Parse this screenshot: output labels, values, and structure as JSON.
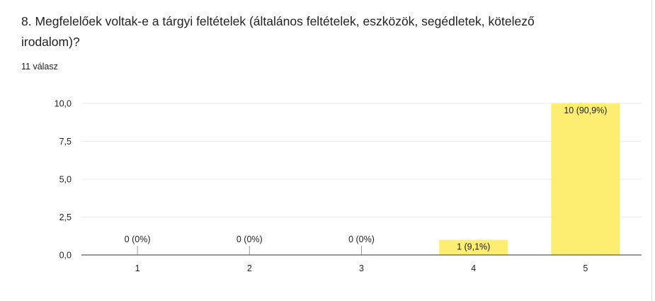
{
  "question": {
    "title": "8. Megfelelőek voltak-e a tárgyi feltételek (általános feltételek, eszközök, segédletek, kötelező irodalom)?",
    "response_count": "11 válasz"
  },
  "colors": {
    "bar": "#fdee71",
    "grid": "#ebebeb",
    "axis": "#333333",
    "text": "#202124"
  },
  "chart_data": {
    "type": "bar",
    "title": "",
    "xlabel": "",
    "ylabel": "",
    "categories": [
      "1",
      "2",
      "3",
      "4",
      "5"
    ],
    "values": [
      0,
      0,
      0,
      1,
      10
    ],
    "data_labels": [
      "0 (0%)",
      "0 (0%)",
      "0 (0%)",
      "1 (9,1%)",
      "10 (90,9%)"
    ],
    "ylim": [
      0,
      10
    ],
    "yticks": [
      0,
      2.5,
      5,
      7.5,
      10
    ],
    "ytick_labels": [
      "0,0",
      "2,5",
      "5,0",
      "7,5",
      "10,0"
    ],
    "grid": true,
    "legend": "none"
  }
}
